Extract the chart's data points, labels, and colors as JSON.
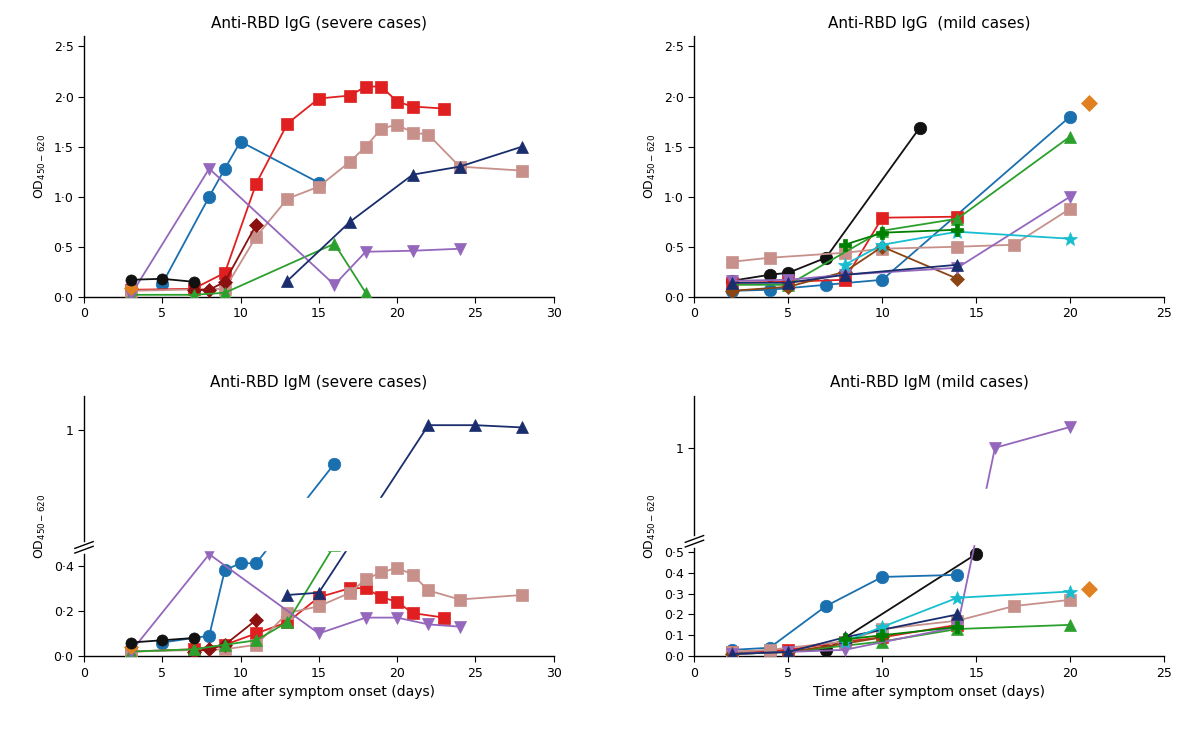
{
  "fig_width": 12.0,
  "fig_height": 7.29,
  "background": "#ffffff",
  "panels": {
    "igg_severe": {
      "title": "Anti-RBD IgG (severe cases)",
      "xlim": [
        0,
        30
      ],
      "ylim": [
        0.0,
        2.6
      ],
      "yticks": [
        0.0,
        0.5,
        1.0,
        1.5,
        2.0,
        2.5
      ],
      "ytick_labels": [
        "0·0",
        "0·5",
        "1·0",
        "1·5",
        "2·0",
        "2·5"
      ],
      "xticks": [
        0,
        5,
        10,
        15,
        20,
        25,
        30
      ],
      "break_axis": false,
      "series": [
        {
          "color": "#1a6faf",
          "marker": "o",
          "ms": 9,
          "lw": 1.3,
          "x": [
            5,
            8,
            9,
            10,
            15
          ],
          "y": [
            0.13,
            1.0,
            1.28,
            1.55,
            1.14
          ]
        },
        {
          "color": "#e02020",
          "marker": "s",
          "ms": 8,
          "lw": 1.3,
          "x": [
            3,
            7,
            9,
            11,
            13,
            15,
            17,
            18,
            19,
            20,
            21,
            23
          ],
          "y": [
            0.07,
            0.08,
            0.24,
            1.13,
            1.73,
            1.98,
            2.01,
            2.1,
            2.1,
            1.95,
            1.9,
            1.88
          ]
        },
        {
          "color": "#c8908a",
          "marker": "s",
          "ms": 8,
          "lw": 1.3,
          "x": [
            3,
            9,
            11,
            13,
            15,
            17,
            18,
            19,
            20,
            21,
            22,
            24,
            28
          ],
          "y": [
            0.06,
            0.08,
            0.6,
            0.98,
            1.1,
            1.35,
            1.5,
            1.68,
            1.72,
            1.64,
            1.62,
            1.3,
            1.26
          ]
        },
        {
          "color": "#8B1010",
          "marker": "D",
          "ms": 7,
          "lw": 1.3,
          "x": [
            7,
            8,
            9,
            11
          ],
          "y": [
            0.07,
            0.07,
            0.15,
            0.72
          ]
        },
        {
          "color": "#2ca02c",
          "marker": "^",
          "ms": 8,
          "lw": 1.3,
          "x": [
            3,
            7,
            9,
            16,
            18
          ],
          "y": [
            0.02,
            0.02,
            0.04,
            0.53,
            0.04
          ]
        },
        {
          "color": "#9467bd",
          "marker": "v",
          "ms": 8,
          "lw": 1.3,
          "x": [
            3,
            8,
            16,
            18,
            21,
            24
          ],
          "y": [
            0.02,
            1.28,
            0.12,
            0.45,
            0.46,
            0.48
          ]
        },
        {
          "color": "#1a2e6e",
          "marker": "^",
          "ms": 8,
          "lw": 1.3,
          "x": [
            13,
            17,
            21,
            24,
            28
          ],
          "y": [
            0.16,
            0.75,
            1.22,
            1.3,
            1.5
          ]
        },
        {
          "color": "#e08020",
          "marker": "D",
          "ms": 7,
          "lw": 1.3,
          "x": [
            3
          ],
          "y": [
            0.09
          ]
        },
        {
          "color": "#111111",
          "marker": "o",
          "ms": 8,
          "lw": 1.3,
          "x": [
            3,
            5,
            7
          ],
          "y": [
            0.17,
            0.18,
            0.15
          ]
        }
      ]
    },
    "igg_mild": {
      "title": "Anti-RBD IgG  (mild cases)",
      "xlim": [
        0,
        25
      ],
      "ylim": [
        0.0,
        2.6
      ],
      "yticks": [
        0.0,
        0.5,
        1.0,
        1.5,
        2.0,
        2.5
      ],
      "ytick_labels": [
        "0·0",
        "0·5",
        "1·0",
        "1·5",
        "2·0",
        "2·5"
      ],
      "xticks": [
        0,
        5,
        10,
        15,
        20,
        25
      ],
      "break_axis": false,
      "series": [
        {
          "color": "#111111",
          "marker": "o",
          "ms": 9,
          "lw": 1.3,
          "x": [
            2,
            4,
            5,
            7,
            12
          ],
          "y": [
            0.16,
            0.22,
            0.24,
            0.39,
            1.69
          ]
        },
        {
          "color": "#1a6faf",
          "marker": "o",
          "ms": 9,
          "lw": 1.3,
          "x": [
            2,
            4,
            7,
            10,
            20
          ],
          "y": [
            0.06,
            0.07,
            0.12,
            0.17,
            1.8
          ]
        },
        {
          "color": "#e08020",
          "marker": "D",
          "ms": 8,
          "lw": 1.3,
          "x": [
            21
          ],
          "y": [
            1.94
          ]
        },
        {
          "color": "#e02020",
          "marker": "s",
          "ms": 8,
          "lw": 1.3,
          "x": [
            2,
            5,
            8,
            10,
            14
          ],
          "y": [
            0.14,
            0.15,
            0.17,
            0.79,
            0.8
          ]
        },
        {
          "color": "#c8908a",
          "marker": "s",
          "ms": 8,
          "lw": 1.3,
          "x": [
            2,
            4,
            8,
            10,
            14,
            17,
            20
          ],
          "y": [
            0.35,
            0.39,
            0.44,
            0.48,
            0.5,
            0.52,
            0.88
          ]
        },
        {
          "color": "#2ca02c",
          "marker": "^",
          "ms": 8,
          "lw": 1.3,
          "x": [
            2,
            5,
            10,
            14,
            20
          ],
          "y": [
            0.12,
            0.12,
            0.66,
            0.78,
            1.6
          ]
        },
        {
          "color": "#8B4513",
          "marker": "D",
          "ms": 7,
          "lw": 1.3,
          "x": [
            2,
            5,
            8,
            10,
            14
          ],
          "y": [
            0.06,
            0.1,
            0.25,
            0.5,
            0.18
          ]
        },
        {
          "color": "#9467bd",
          "marker": "v",
          "ms": 8,
          "lw": 1.3,
          "x": [
            2,
            5,
            8,
            14,
            20
          ],
          "y": [
            0.16,
            0.17,
            0.22,
            0.29,
            1.0
          ]
        },
        {
          "color": "#1a2e6e",
          "marker": "^",
          "ms": 8,
          "lw": 1.3,
          "x": [
            2,
            5,
            8,
            14
          ],
          "y": [
            0.14,
            0.14,
            0.22,
            0.32
          ]
        },
        {
          "color": "#17becf",
          "marker": "*",
          "ms": 10,
          "lw": 1.3,
          "x": [
            8,
            10,
            14,
            20
          ],
          "y": [
            0.32,
            0.52,
            0.65,
            0.58
          ]
        },
        {
          "color": "#008000",
          "marker": "P",
          "ms": 9,
          "lw": 1.3,
          "x": [
            8,
            10,
            14
          ],
          "y": [
            0.52,
            0.64,
            0.67
          ]
        }
      ]
    },
    "igm_severe": {
      "title": "Anti-RBD IgM (severe cases)",
      "xlim": [
        0,
        30
      ],
      "ylim": [
        0.0,
        1.15
      ],
      "yticks": [
        0.0,
        0.2,
        0.4,
        1.0
      ],
      "ytick_labels": [
        "0·0",
        "0·2",
        "0·4",
        "1"
      ],
      "xticks": [
        0,
        5,
        10,
        15,
        20,
        25,
        30
      ],
      "break_axis": true,
      "break_y_lo": 0.47,
      "break_y_hi": 0.7,
      "series": [
        {
          "color": "#1a6faf",
          "marker": "o",
          "ms": 9,
          "lw": 1.3,
          "x": [
            5,
            8,
            9,
            10,
            11,
            16
          ],
          "y": [
            0.06,
            0.09,
            0.38,
            0.41,
            0.41,
            0.85
          ]
        },
        {
          "color": "#e02020",
          "marker": "s",
          "ms": 8,
          "lw": 1.3,
          "x": [
            3,
            7,
            9,
            11,
            13,
            15,
            17,
            18,
            19,
            20,
            21,
            23
          ],
          "y": [
            0.02,
            0.03,
            0.05,
            0.1,
            0.15,
            0.26,
            0.3,
            0.3,
            0.26,
            0.24,
            0.19,
            0.17
          ]
        },
        {
          "color": "#c8908a",
          "marker": "s",
          "ms": 8,
          "lw": 1.3,
          "x": [
            3,
            9,
            11,
            13,
            15,
            17,
            18,
            19,
            20,
            21,
            22,
            24,
            28
          ],
          "y": [
            0.02,
            0.03,
            0.05,
            0.19,
            0.22,
            0.28,
            0.34,
            0.37,
            0.39,
            0.36,
            0.29,
            0.25,
            0.27
          ]
        },
        {
          "color": "#8B1010",
          "marker": "D",
          "ms": 7,
          "lw": 1.3,
          "x": [
            7,
            8,
            9,
            11
          ],
          "y": [
            0.02,
            0.03,
            0.05,
            0.16
          ]
        },
        {
          "color": "#2ca02c",
          "marker": "^",
          "ms": 8,
          "lw": 1.3,
          "x": [
            3,
            7,
            9,
            11,
            13,
            16
          ],
          "y": [
            0.02,
            0.03,
            0.05,
            0.07,
            0.15,
            0.49
          ]
        },
        {
          "color": "#9467bd",
          "marker": "v",
          "ms": 8,
          "lw": 1.3,
          "x": [
            3,
            8,
            15,
            18,
            20,
            22,
            24
          ],
          "y": [
            0.02,
            0.45,
            0.1,
            0.17,
            0.17,
            0.14,
            0.13
          ]
        },
        {
          "color": "#1a2e6e",
          "marker": "^",
          "ms": 8,
          "lw": 1.3,
          "x": [
            13,
            15,
            22,
            25,
            28
          ],
          "y": [
            0.27,
            0.28,
            1.02,
            1.02,
            1.01
          ]
        },
        {
          "color": "#e08020",
          "marker": "D",
          "ms": 7,
          "lw": 1.3,
          "x": [
            3
          ],
          "y": [
            0.04
          ]
        },
        {
          "color": "#111111",
          "marker": "o",
          "ms": 8,
          "lw": 1.3,
          "x": [
            3,
            5,
            7
          ],
          "y": [
            0.06,
            0.07,
            0.08
          ]
        }
      ]
    },
    "igm_mild": {
      "title": "Anti-RBD IgM (mild cases)",
      "xlim": [
        0,
        25
      ],
      "ylim": [
        0.0,
        1.25
      ],
      "yticks": [
        0.0,
        0.1,
        0.2,
        0.3,
        0.4,
        0.5,
        1.0
      ],
      "ytick_labels": [
        "0·0",
        "0·1",
        "0·2",
        "0·3",
        "0·4",
        "0·5",
        "1"
      ],
      "xticks": [
        0,
        5,
        10,
        15,
        20,
        25
      ],
      "break_axis": true,
      "break_y_lo": 0.54,
      "break_y_hi": 0.8,
      "series": [
        {
          "color": "#111111",
          "marker": "o",
          "ms": 9,
          "lw": 1.3,
          "x": [
            2,
            4,
            7,
            15
          ],
          "y": [
            0.02,
            0.02,
            0.03,
            0.49
          ]
        },
        {
          "color": "#1a6faf",
          "marker": "o",
          "ms": 9,
          "lw": 1.3,
          "x": [
            2,
            4,
            7,
            10,
            14
          ],
          "y": [
            0.03,
            0.04,
            0.24,
            0.38,
            0.39
          ]
        },
        {
          "color": "#e08020",
          "marker": "D",
          "ms": 8,
          "lw": 1.3,
          "x": [
            21
          ],
          "y": [
            0.32
          ]
        },
        {
          "color": "#e02020",
          "marker": "s",
          "ms": 8,
          "lw": 1.3,
          "x": [
            2,
            5,
            8,
            10,
            14
          ],
          "y": [
            0.02,
            0.03,
            0.07,
            0.09,
            0.15
          ]
        },
        {
          "color": "#c8908a",
          "marker": "s",
          "ms": 8,
          "lw": 1.3,
          "x": [
            2,
            4,
            8,
            10,
            14,
            17,
            20
          ],
          "y": [
            0.02,
            0.03,
            0.07,
            0.13,
            0.17,
            0.24,
            0.27
          ]
        },
        {
          "color": "#2ca02c",
          "marker": "^",
          "ms": 8,
          "lw": 1.3,
          "x": [
            2,
            5,
            10,
            14,
            20
          ],
          "y": [
            0.01,
            0.02,
            0.07,
            0.13,
            0.15
          ]
        },
        {
          "color": "#8B4513",
          "marker": "D",
          "ms": 7,
          "lw": 1.3,
          "x": [
            2,
            5,
            8,
            10
          ],
          "y": [
            0.01,
            0.02,
            0.06,
            0.09
          ]
        },
        {
          "color": "#9467bd",
          "marker": "v",
          "ms": 8,
          "lw": 1.3,
          "x": [
            2,
            5,
            8,
            14,
            16,
            20
          ],
          "y": [
            0.01,
            0.02,
            0.03,
            0.14,
            1.0,
            1.1
          ]
        },
        {
          "color": "#1a2e6e",
          "marker": "^",
          "ms": 8,
          "lw": 1.3,
          "x": [
            2,
            5,
            8,
            14
          ],
          "y": [
            0.01,
            0.02,
            0.09,
            0.2
          ]
        },
        {
          "color": "#17becf",
          "marker": "*",
          "ms": 10,
          "lw": 1.3,
          "x": [
            8,
            10,
            14,
            20
          ],
          "y": [
            0.07,
            0.14,
            0.28,
            0.31
          ]
        },
        {
          "color": "#008000",
          "marker": "P",
          "ms": 9,
          "lw": 1.3,
          "x": [
            8,
            10,
            14
          ],
          "y": [
            0.08,
            0.1,
            0.14
          ]
        }
      ]
    }
  }
}
